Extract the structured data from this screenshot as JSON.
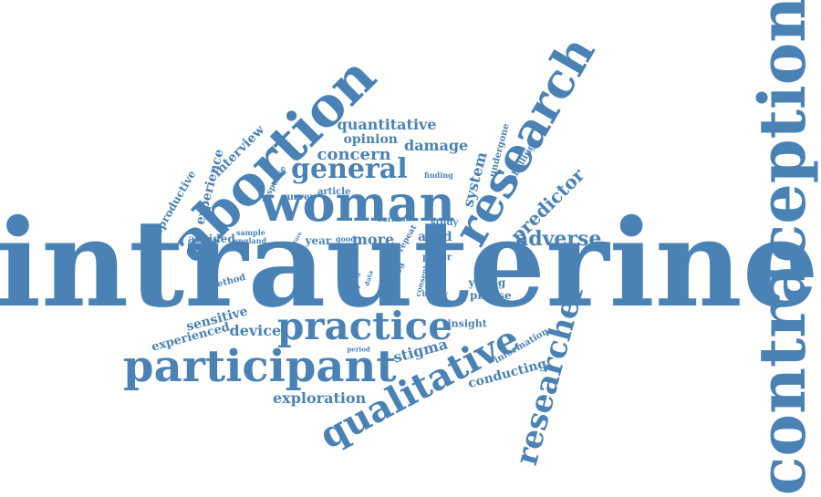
{
  "colors": {
    "word": "#4a82b6",
    "background": "#ffffff"
  },
  "words": {
    "intrauterine": "intrauterine",
    "contraception": "contraception",
    "abortion": "abortion",
    "woman": "woman",
    "research": "research",
    "participant": "participant",
    "practice": "practice",
    "qualitative": "qualitative",
    "researcher": "researcher",
    "general": "general",
    "quantitative": "quantitative",
    "concern": "concern",
    "opinion": "opinion",
    "damage": "damage",
    "predictor": "predictor",
    "adverse": "adverse",
    "system": "system",
    "interview": "interview",
    "experience": "experience",
    "reproductive": "reproductive",
    "avoided": "avoided",
    "more": "more",
    "year": "year",
    "aged": "aged",
    "study": "study",
    "paper": "paper",
    "method": "method",
    "sensitive": "sensitive",
    "device": "device",
    "experienced": "experienced",
    "stigma": "stigma",
    "insight": "insight",
    "conducting": "conducting",
    "exploration": "exploration",
    "information": "information",
    "young": "young",
    "phrase": "phrase",
    "labelling": "labelling",
    "undergone": "undergone",
    "finding": "finding",
    "article": "article",
    "survey": "survey",
    "response": "response",
    "sample": "sample",
    "england": "england",
    "good": "good",
    "barrier": "barrier",
    "repeat": "repeat",
    "setting": "setting",
    "consent": "consent",
    "binary": "binary",
    "role": "role",
    "data": "data",
    "able": "able",
    "period": "period",
    "need": "need",
    "proc": "proc",
    "talk": "talk",
    "light": "light",
    "future": "future"
  }
}
